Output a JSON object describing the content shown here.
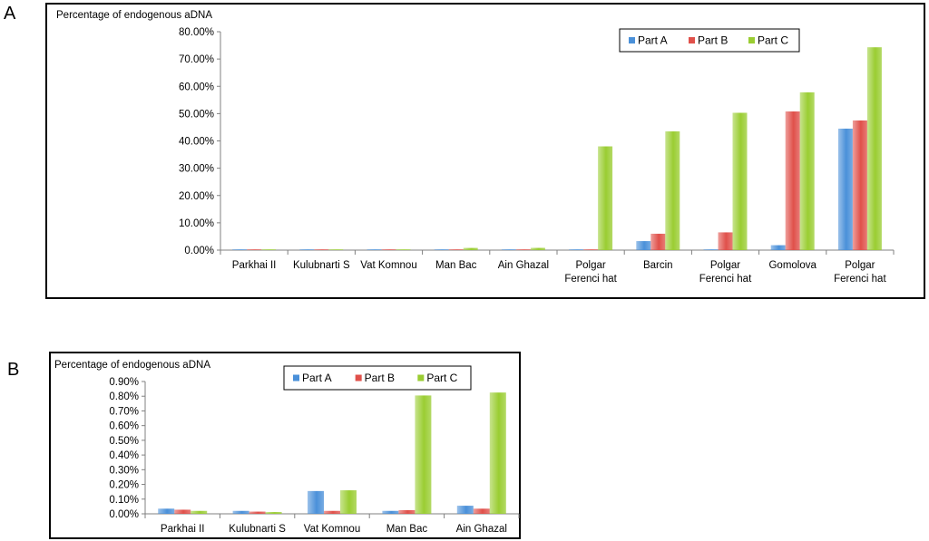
{
  "panels": {
    "a": {
      "letter": "A"
    },
    "b": {
      "letter": "B"
    }
  },
  "colors": {
    "part_a": "#4a90d9",
    "part_b": "#e0504a",
    "part_c": "#9acd32",
    "axis": "#808080",
    "frame": "#000000"
  },
  "chart_data": [
    {
      "type": "bar",
      "ylabel": "Percentage of endogenous aDNA",
      "categories": [
        "Parkhai II",
        "Kulubnarti S",
        "Vat Komnou",
        "Man Bac",
        "Ain Ghazal",
        "Polgar\nFerenci hat",
        "Barcin",
        "Polgar\nFerenci hat",
        "Gomolova",
        "Polgar\nFerenci hat"
      ],
      "ylim": [
        0,
        80
      ],
      "yticks": [
        "0.00%",
        "10.00%",
        "20.00%",
        "30.00%",
        "40.00%",
        "50.00%",
        "60.00%",
        "70.00%",
        "80.00%"
      ],
      "legend_position": "top-right",
      "series": [
        {
          "name": "Part A",
          "values": [
            0.04,
            0.02,
            0.16,
            0.02,
            0.05,
            0.1,
            3.3,
            0.1,
            1.8,
            44.5
          ]
        },
        {
          "name": "Part B",
          "values": [
            0.03,
            0.015,
            0.02,
            0.02,
            0.03,
            0.2,
            6.0,
            6.5,
            50.8,
            47.5
          ]
        },
        {
          "name": "Part C",
          "values": [
            0.02,
            0.01,
            0.16,
            0.8,
            0.82,
            38.0,
            43.5,
            50.3,
            57.8,
            74.3
          ]
        }
      ]
    },
    {
      "type": "bar",
      "ylabel": "Percentage of endogenous aDNA",
      "categories": [
        "Parkhai II",
        "Kulubnarti S",
        "Vat Komnou",
        "Man Bac",
        "Ain Ghazal"
      ],
      "ylim": [
        0,
        0.9
      ],
      "yticks": [
        "0.00%",
        "0.10%",
        "0.20%",
        "0.30%",
        "0.40%",
        "0.50%",
        "0.60%",
        "0.70%",
        "0.80%",
        "0.90%"
      ],
      "legend_position": "top-center",
      "series": [
        {
          "name": "Part A",
          "values": [
            0.035,
            0.02,
            0.155,
            0.02,
            0.055
          ]
        },
        {
          "name": "Part B",
          "values": [
            0.028,
            0.015,
            0.02,
            0.025,
            0.035
          ]
        },
        {
          "name": "Part C",
          "values": [
            0.02,
            0.012,
            0.16,
            0.805,
            0.825
          ]
        }
      ]
    }
  ]
}
